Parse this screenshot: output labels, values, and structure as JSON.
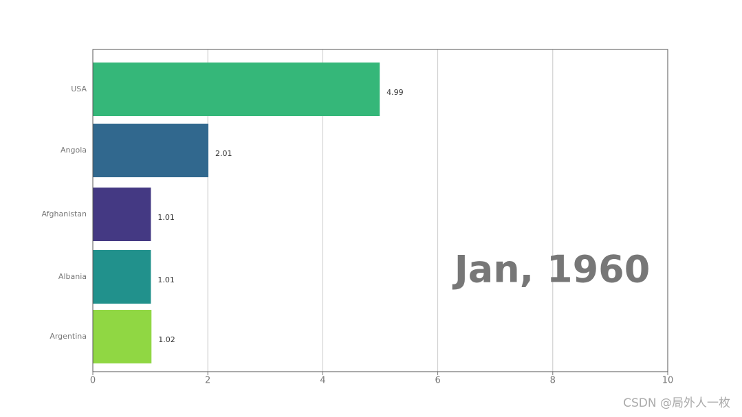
{
  "chart_data": {
    "type": "barh",
    "categories": [
      "USA",
      "Angola",
      "Afghanistan",
      "Albania",
      "Argentina"
    ],
    "values": [
      4.99,
      2.01,
      1.01,
      1.01,
      1.02
    ],
    "colors": [
      "#35b779",
      "#31688e",
      "#443983",
      "#21918c",
      "#90d743"
    ],
    "xlim": [
      0,
      10
    ],
    "xticks": [
      0,
      2,
      4,
      6,
      8,
      10
    ],
    "grid": true,
    "annotation": "Jan, 1960"
  },
  "watermark": "CSDN @局外人一枚"
}
